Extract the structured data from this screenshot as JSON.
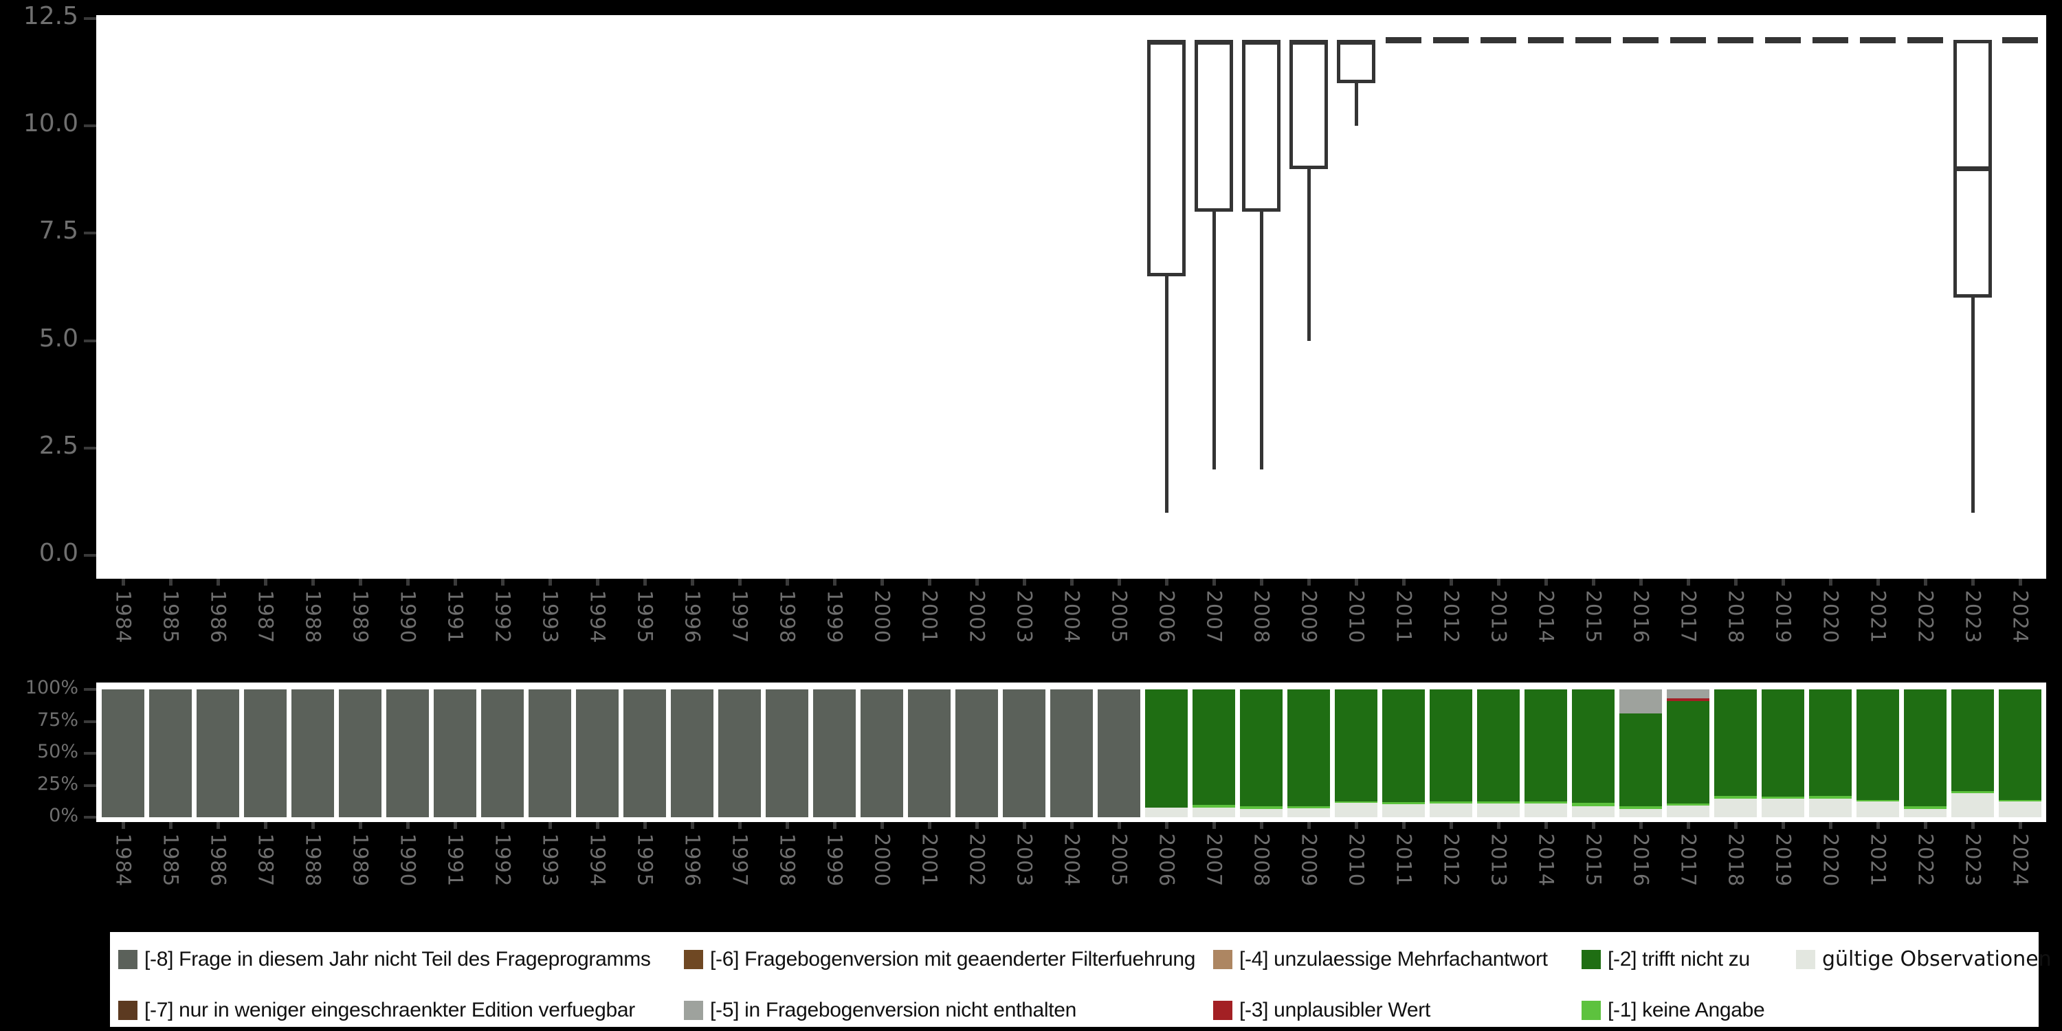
{
  "colors": {
    "background": "#000000",
    "panel": "#ffffff",
    "box_stroke": "#343434",
    "axis_tick": "#3a3a3a",
    "axis_label": "#6f6f6f",
    "neg8": "#5b615a",
    "neg7": "#5c3a21",
    "neg6": "#6f4823",
    "neg5": "#9ea29d",
    "neg4": "#ad8662",
    "neg3": "#a32024",
    "neg2": "#1f6e13",
    "neg1": "#5dc23e",
    "valid": "#e3e7e0"
  },
  "chart_data": [
    {
      "type": "boxplot",
      "panel": "top",
      "title": "",
      "xlabel": "",
      "ylabel": "",
      "ylim": [
        0,
        12.5
      ],
      "ytick_labels": [
        "12.5",
        "10.0",
        "7.5",
        "5.0",
        "2.5",
        "0.0"
      ],
      "ytick_values": [
        12.5,
        10.0,
        7.5,
        5.0,
        2.5,
        0.0
      ],
      "grid": false,
      "categories": [
        "1984",
        "1985",
        "1986",
        "1987",
        "1988",
        "1989",
        "1990",
        "1991",
        "1992",
        "1993",
        "1994",
        "1995",
        "1996",
        "1997",
        "1998",
        "1999",
        "2000",
        "2001",
        "2002",
        "2003",
        "2004",
        "2005",
        "2006",
        "2007",
        "2008",
        "2009",
        "2010",
        "2011",
        "2012",
        "2013",
        "2014",
        "2015",
        "2016",
        "2017",
        "2018",
        "2019",
        "2020",
        "2021",
        "2022",
        "2023",
        "2024"
      ],
      "boxes": [
        {
          "year": "2006",
          "q1": 6.5,
          "median": 12,
          "q3": 12,
          "whisker_low": 1,
          "whisker_high": 12
        },
        {
          "year": "2007",
          "q1": 8,
          "median": 12,
          "q3": 12,
          "whisker_low": 2,
          "whisker_high": 12
        },
        {
          "year": "2008",
          "q1": 8,
          "median": 12,
          "q3": 12,
          "whisker_low": 2,
          "whisker_high": 12
        },
        {
          "year": "2009",
          "q1": 9,
          "median": 12,
          "q3": 12,
          "whisker_low": 5,
          "whisker_high": 12
        },
        {
          "year": "2010",
          "q1": 11,
          "median": 12,
          "q3": 12,
          "whisker_low": 10,
          "whisker_high": 12
        },
        {
          "year": "2011",
          "all_values_at": 12
        },
        {
          "year": "2012",
          "all_values_at": 12
        },
        {
          "year": "2013",
          "all_values_at": 12
        },
        {
          "year": "2014",
          "all_values_at": 12
        },
        {
          "year": "2015",
          "all_values_at": 12
        },
        {
          "year": "2016",
          "all_values_at": 12
        },
        {
          "year": "2017",
          "all_values_at": 12
        },
        {
          "year": "2018",
          "all_values_at": 12
        },
        {
          "year": "2019",
          "all_values_at": 12
        },
        {
          "year": "2020",
          "all_values_at": 12
        },
        {
          "year": "2021",
          "all_values_at": 12
        },
        {
          "year": "2022",
          "all_values_at": 12
        },
        {
          "year": "2023",
          "q1": 6,
          "median": 9,
          "q3": 12,
          "whisker_low": 1,
          "whisker_high": 12
        },
        {
          "year": "2024",
          "all_values_at": 12
        }
      ]
    },
    {
      "type": "bar",
      "stacked": true,
      "percent": true,
      "panel": "bottom",
      "ytick_labels": [
        "100%",
        "75%",
        "50%",
        "25%",
        "0%"
      ],
      "ytick_values": [
        100,
        75,
        50,
        25,
        0
      ],
      "categories": [
        "1984",
        "1985",
        "1986",
        "1987",
        "1988",
        "1989",
        "1990",
        "1991",
        "1992",
        "1993",
        "1994",
        "1995",
        "1996",
        "1997",
        "1998",
        "1999",
        "2000",
        "2001",
        "2002",
        "2003",
        "2004",
        "2005",
        "2006",
        "2007",
        "2008",
        "2009",
        "2010",
        "2011",
        "2012",
        "2013",
        "2014",
        "2015",
        "2016",
        "2017",
        "2018",
        "2019",
        "2020",
        "2021",
        "2022",
        "2023",
        "2024"
      ],
      "series": [
        {
          "name": "[-8] Frage in diesem Jahr nicht Teil des Frageprogramms",
          "color_key": "neg8",
          "values": [
            100,
            100,
            100,
            100,
            100,
            100,
            100,
            100,
            100,
            100,
            100,
            100,
            100,
            100,
            100,
            100,
            100,
            100,
            100,
            100,
            100,
            100,
            0,
            0,
            0,
            0,
            0,
            0,
            0,
            0,
            0,
            0,
            0,
            0,
            0,
            0,
            0,
            0,
            0,
            0,
            0
          ]
        },
        {
          "name": "[-5] in Fragebogenversion nicht enthalten",
          "color_key": "neg5",
          "values": [
            0,
            0,
            0,
            0,
            0,
            0,
            0,
            0,
            0,
            0,
            0,
            0,
            0,
            0,
            0,
            0,
            0,
            0,
            0,
            0,
            0,
            0,
            0,
            0,
            0,
            0,
            0,
            0,
            0,
            0,
            0,
            0,
            18.7,
            7.2,
            0,
            0,
            0,
            0,
            0,
            0,
            0
          ]
        },
        {
          "name": "[-3] unplausibler Wert",
          "color_key": "neg3",
          "values": [
            0,
            0,
            0,
            0,
            0,
            0,
            0,
            0,
            0,
            0,
            0,
            0,
            0,
            0,
            0,
            0,
            0,
            0,
            0,
            0,
            0,
            0,
            0,
            0,
            0,
            0,
            0,
            0,
            0,
            0,
            0,
            0,
            0,
            2.2,
            0,
            0,
            0,
            0,
            0,
            0,
            0
          ]
        },
        {
          "name": "[-2] trifft nicht zu",
          "color_key": "neg2",
          "values": [
            0,
            0,
            0,
            0,
            0,
            0,
            0,
            0,
            0,
            0,
            0,
            0,
            0,
            0,
            0,
            0,
            0,
            0,
            0,
            0,
            0,
            0,
            92.5,
            90.3,
            91.3,
            91.4,
            87.5,
            88.1,
            87.8,
            87.8,
            87.8,
            88.7,
            72.6,
            79.8,
            83.5,
            84.0,
            83.6,
            86.3,
            91.5,
            79.5,
            86.8
          ]
        },
        {
          "name": "[-1] keine Angabe",
          "color_key": "neg1",
          "values": [
            0,
            0,
            0,
            0,
            0,
            0,
            0,
            0,
            0,
            0,
            0,
            0,
            0,
            0,
            0,
            0,
            0,
            0,
            0,
            0,
            0,
            0,
            0,
            2.2,
            2.2,
            1.6,
            1.2,
            1.5,
            1.7,
            1.7,
            1.7,
            2.7,
            2.2,
            1.7,
            1.8,
            1.7,
            1.7,
            1.2,
            2.2,
            1.7,
            1.0
          ]
        },
        {
          "name": "gültige Observationen",
          "color_key": "valid",
          "values": [
            0,
            0,
            0,
            0,
            0,
            0,
            0,
            0,
            0,
            0,
            0,
            0,
            0,
            0,
            0,
            0,
            0,
            0,
            0,
            0,
            0,
            0,
            7.5,
            7.5,
            6.5,
            7.0,
            11.3,
            10.4,
            10.5,
            10.5,
            10.5,
            8.6,
            6.5,
            9.1,
            14.7,
            14.3,
            14.7,
            12.5,
            6.3,
            18.8,
            12.2
          ]
        }
      ]
    }
  ],
  "legend": {
    "items": [
      {
        "label": "[-8] Frage in diesem Jahr nicht Teil des Frageprogramms",
        "color_key": "neg8",
        "col": 0,
        "row": 0
      },
      {
        "label": "[-7] nur in weniger eingeschraenkter Edition verfuegbar",
        "color_key": "neg7",
        "col": 0,
        "row": 1
      },
      {
        "label": "[-6] Fragebogenversion mit geaenderter Filterfuehrung",
        "color_key": "neg6",
        "col": 1,
        "row": 0
      },
      {
        "label": "[-5] in Fragebogenversion nicht enthalten",
        "color_key": "neg5",
        "col": 1,
        "row": 1
      },
      {
        "label": "[-4] unzulaessige Mehrfachantwort",
        "color_key": "neg4",
        "col": 2,
        "row": 0
      },
      {
        "label": "[-3] unplausibler Wert",
        "color_key": "neg3",
        "col": 2,
        "row": 1
      },
      {
        "label": "[-2] trifft nicht zu",
        "color_key": "neg2",
        "col": 3,
        "row": 0
      },
      {
        "label": "[-1] keine Angabe",
        "color_key": "neg1",
        "col": 3,
        "row": 1
      },
      {
        "label": "gültige Observationen",
        "color_key": "valid",
        "col": 4,
        "row": 0,
        "wide_font": true
      }
    ]
  }
}
